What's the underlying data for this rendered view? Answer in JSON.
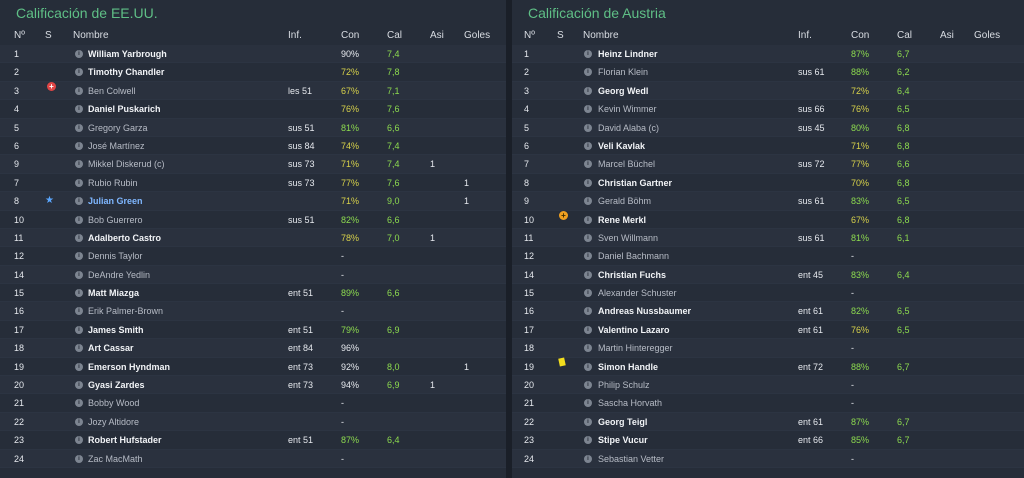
{
  "left": {
    "title": "Calificación de EE.UU.",
    "headers": {
      "num": "Nº",
      "s": "S",
      "name": "Nombre",
      "inf": "Inf.",
      "con": "Con",
      "cal": "Cal",
      "asi": "Asi",
      "goles": "Goles"
    },
    "rows": [
      {
        "num": "1",
        "s": "",
        "name": "William Yarbrough",
        "bold": true,
        "inf": "",
        "con": "90%",
        "cal": "7,4",
        "asi": "",
        "goles": ""
      },
      {
        "num": "2",
        "s": "",
        "name": "Timothy Chandler",
        "bold": true,
        "inf": "",
        "con": "72%",
        "cal": "7,8",
        "asi": "",
        "goles": ""
      },
      {
        "num": "3",
        "s": "injury-icon",
        "name": "Ben Colwell",
        "bold": false,
        "inf": "les 51",
        "con": "67%",
        "cal": "7,1",
        "asi": "",
        "goles": ""
      },
      {
        "num": "4",
        "s": "",
        "name": "Daniel Puskarich",
        "bold": true,
        "inf": "",
        "con": "76%",
        "cal": "7,6",
        "asi": "",
        "goles": ""
      },
      {
        "num": "5",
        "s": "",
        "name": "Gregory Garza",
        "bold": false,
        "inf": "sus 51",
        "con": "81%",
        "cal": "6,6",
        "asi": "",
        "goles": ""
      },
      {
        "num": "6",
        "s": "",
        "name": "José Martínez",
        "bold": false,
        "inf": "sus 84",
        "con": "74%",
        "cal": "7,4",
        "asi": "",
        "goles": ""
      },
      {
        "num": "9",
        "s": "",
        "name": "Mikkel Diskerud (c)",
        "bold": false,
        "inf": "sus 73",
        "con": "71%",
        "cal": "7,4",
        "asi": "1",
        "goles": ""
      },
      {
        "num": "7",
        "s": "",
        "name": "Rubio Rubin",
        "bold": false,
        "inf": "sus 73",
        "con": "77%",
        "cal": "7,6",
        "asi": "",
        "goles": "1"
      },
      {
        "num": "8",
        "s": "star-icon",
        "name": "Julian Green",
        "bold": false,
        "blue": true,
        "inf": "",
        "con": "71%",
        "cal": "9,0",
        "asi": "",
        "goles": "1"
      },
      {
        "num": "10",
        "s": "",
        "name": "Bob Guerrero",
        "bold": false,
        "inf": "sus 51",
        "con": "82%",
        "cal": "6,6",
        "asi": "",
        "goles": ""
      },
      {
        "num": "11",
        "s": "",
        "name": "Adalberto Castro",
        "bold": true,
        "inf": "",
        "con": "78%",
        "cal": "7,0",
        "asi": "1",
        "goles": ""
      },
      {
        "num": "12",
        "s": "",
        "name": "Dennis Taylor",
        "bold": false,
        "inf": "",
        "con": "-",
        "cal": "",
        "asi": "",
        "goles": ""
      },
      {
        "num": "14",
        "s": "",
        "name": "DeAndre Yedlin",
        "bold": false,
        "inf": "",
        "con": "-",
        "cal": "",
        "asi": "",
        "goles": ""
      },
      {
        "num": "15",
        "s": "",
        "name": "Matt Miazga",
        "bold": true,
        "inf": "ent 51",
        "con": "89%",
        "cal": "6,6",
        "asi": "",
        "goles": ""
      },
      {
        "num": "16",
        "s": "",
        "name": "Erik Palmer-Brown",
        "bold": false,
        "inf": "",
        "con": "-",
        "cal": "",
        "asi": "",
        "goles": ""
      },
      {
        "num": "17",
        "s": "",
        "name": "James Smith",
        "bold": true,
        "inf": "ent 51",
        "con": "79%",
        "cal": "6,9",
        "asi": "",
        "goles": ""
      },
      {
        "num": "18",
        "s": "",
        "name": "Art Cassar",
        "bold": true,
        "inf": "ent 84",
        "con": "96%",
        "cal": "",
        "asi": "",
        "goles": ""
      },
      {
        "num": "19",
        "s": "",
        "name": "Emerson Hyndman",
        "bold": true,
        "inf": "ent 73",
        "con": "92%",
        "cal": "8,0",
        "asi": "",
        "goles": "1"
      },
      {
        "num": "20",
        "s": "",
        "name": "Gyasi Zardes",
        "bold": true,
        "inf": "ent 73",
        "con": "94%",
        "cal": "6,9",
        "asi": "1",
        "goles": ""
      },
      {
        "num": "21",
        "s": "",
        "name": "Bobby Wood",
        "bold": false,
        "inf": "",
        "con": "-",
        "cal": "",
        "asi": "",
        "goles": ""
      },
      {
        "num": "22",
        "s": "",
        "name": "Jozy Altidore",
        "bold": false,
        "inf": "",
        "con": "-",
        "cal": "",
        "asi": "",
        "goles": ""
      },
      {
        "num": "23",
        "s": "",
        "name": "Robert Hufstader",
        "bold": true,
        "inf": "ent 51",
        "con": "87%",
        "cal": "6,4",
        "asi": "",
        "goles": ""
      },
      {
        "num": "24",
        "s": "",
        "name": "Zac MacMath",
        "bold": false,
        "inf": "",
        "con": "-",
        "cal": "",
        "asi": "",
        "goles": ""
      }
    ]
  },
  "right": {
    "title": "Calificación de Austria",
    "headers": {
      "num": "Nº",
      "s": "S",
      "name": "Nombre",
      "inf": "Inf.",
      "con": "Con",
      "cal": "Cal",
      "asi": "Asi",
      "goles": "Goles"
    },
    "rows": [
      {
        "num": "1",
        "s": "",
        "name": "Heinz Lindner",
        "bold": true,
        "inf": "",
        "con": "87%",
        "cal": "6,7",
        "asi": "",
        "goles": ""
      },
      {
        "num": "2",
        "s": "",
        "name": "Florian Klein",
        "bold": false,
        "inf": "sus 61",
        "con": "88%",
        "cal": "6,2",
        "asi": "",
        "goles": ""
      },
      {
        "num": "3",
        "s": "",
        "name": "Georg Wedl",
        "bold": true,
        "inf": "",
        "con": "72%",
        "cal": "6,4",
        "asi": "",
        "goles": ""
      },
      {
        "num": "4",
        "s": "",
        "name": "Kevin Wimmer",
        "bold": false,
        "inf": "sus 66",
        "con": "76%",
        "cal": "6,5",
        "asi": "",
        "goles": ""
      },
      {
        "num": "5",
        "s": "",
        "name": "David Alaba (c)",
        "bold": false,
        "inf": "sus 45",
        "con": "80%",
        "cal": "6,8",
        "asi": "",
        "goles": ""
      },
      {
        "num": "6",
        "s": "",
        "name": "Veli Kavlak",
        "bold": true,
        "inf": "",
        "con": "71%",
        "cal": "6,8",
        "asi": "",
        "goles": ""
      },
      {
        "num": "7",
        "s": "",
        "name": "Marcel Büchel",
        "bold": false,
        "inf": "sus 72",
        "con": "77%",
        "cal": "6,6",
        "asi": "",
        "goles": ""
      },
      {
        "num": "8",
        "s": "",
        "name": "Christian Gartner",
        "bold": true,
        "inf": "",
        "con": "70%",
        "cal": "6,8",
        "asi": "",
        "goles": ""
      },
      {
        "num": "9",
        "s": "",
        "name": "Gerald Böhm",
        "bold": false,
        "inf": "sus 61",
        "con": "83%",
        "cal": "6,5",
        "asi": "",
        "goles": ""
      },
      {
        "num": "10",
        "s": "plus-icon",
        "name": "Rene Merkl",
        "bold": true,
        "inf": "",
        "con": "67%",
        "cal": "6,8",
        "asi": "",
        "goles": ""
      },
      {
        "num": "11",
        "s": "",
        "name": "Sven Willmann",
        "bold": false,
        "inf": "sus 61",
        "con": "81%",
        "cal": "6,1",
        "asi": "",
        "goles": ""
      },
      {
        "num": "12",
        "s": "",
        "name": "Daniel Bachmann",
        "bold": false,
        "inf": "",
        "con": "-",
        "cal": "",
        "asi": "",
        "goles": ""
      },
      {
        "num": "14",
        "s": "",
        "name": "Christian Fuchs",
        "bold": true,
        "inf": "ent 45",
        "con": "83%",
        "cal": "6,4",
        "asi": "",
        "goles": ""
      },
      {
        "num": "15",
        "s": "",
        "name": "Alexander Schuster",
        "bold": false,
        "inf": "",
        "con": "-",
        "cal": "",
        "asi": "",
        "goles": ""
      },
      {
        "num": "16",
        "s": "",
        "name": "Andreas Nussbaumer",
        "bold": true,
        "inf": "ent 61",
        "con": "82%",
        "cal": "6,5",
        "asi": "",
        "goles": ""
      },
      {
        "num": "17",
        "s": "",
        "name": "Valentino Lazaro",
        "bold": true,
        "inf": "ent 61",
        "con": "76%",
        "cal": "6,5",
        "asi": "",
        "goles": ""
      },
      {
        "num": "18",
        "s": "",
        "name": "Martin Hinteregger",
        "bold": false,
        "inf": "",
        "con": "-",
        "cal": "",
        "asi": "",
        "goles": ""
      },
      {
        "num": "19",
        "s": "yellow-card-icon",
        "name": "Simon Handle",
        "bold": true,
        "inf": "ent 72",
        "con": "88%",
        "cal": "6,7",
        "asi": "",
        "goles": ""
      },
      {
        "num": "20",
        "s": "",
        "name": "Philip Schulz",
        "bold": false,
        "inf": "",
        "con": "-",
        "cal": "",
        "asi": "",
        "goles": ""
      },
      {
        "num": "21",
        "s": "",
        "name": "Sascha Horvath",
        "bold": false,
        "inf": "",
        "con": "-",
        "cal": "",
        "asi": "",
        "goles": ""
      },
      {
        "num": "22",
        "s": "",
        "name": "Georg Teigl",
        "bold": true,
        "inf": "ent 61",
        "con": "87%",
        "cal": "6,7",
        "asi": "",
        "goles": ""
      },
      {
        "num": "23",
        "s": "",
        "name": "Stipe Vucur",
        "bold": true,
        "inf": "ent 66",
        "con": "85%",
        "cal": "6,7",
        "asi": "",
        "goles": ""
      },
      {
        "num": "24",
        "s": "",
        "name": "Sebastian Vetter",
        "bold": false,
        "inf": "",
        "con": "-",
        "cal": "",
        "asi": "",
        "goles": ""
      }
    ]
  },
  "colors": {
    "title": "#5fbf86",
    "good": "#8ddb4f",
    "medium": "#d8d24a"
  }
}
